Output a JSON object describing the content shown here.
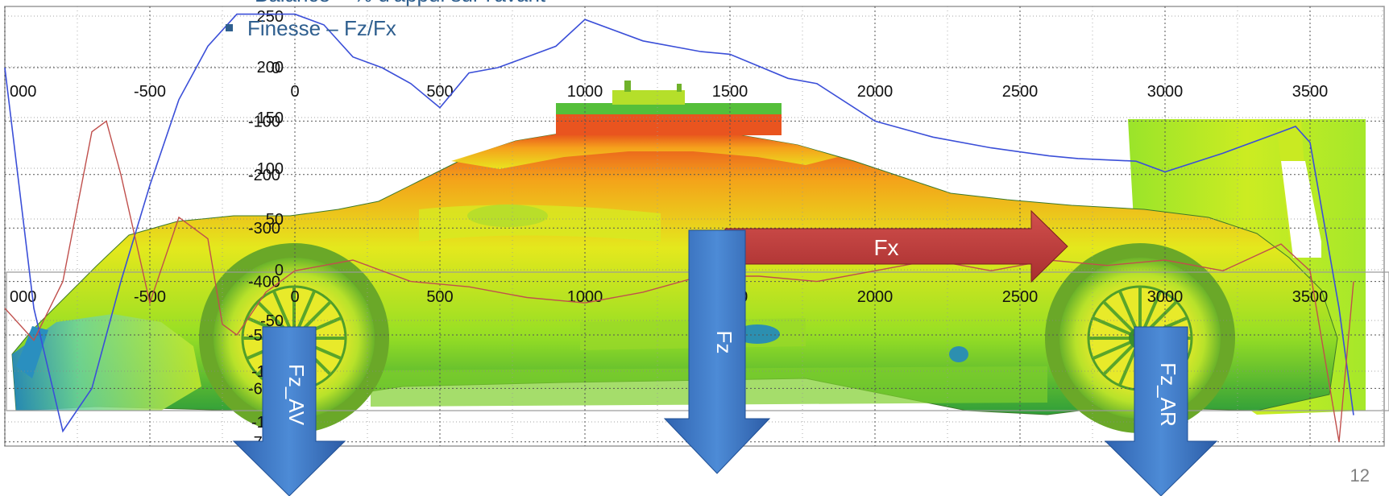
{
  "bullets": {
    "top_clipped": "Balance – % d'appui sur l'avant",
    "finesse": "Finesse – Fz/Fx"
  },
  "forces": {
    "fx": "Fx",
    "fz": "Fz",
    "fz_front": "Fz_AV",
    "fz_rear": "Fz_AR"
  },
  "page_number": "12",
  "colors": {
    "arrow_blue": "#3d75c0",
    "arrow_red": "#c0393b",
    "curve_blue": "#3b4fd8",
    "curve_red": "#c0504d",
    "text_blue": "#2f5f8f"
  },
  "chart_data": {
    "type": "line",
    "x_axis": {
      "ticks_upper": [
        "000",
        "-500",
        "0",
        "500",
        "1000",
        "1500",
        "2000",
        "2500",
        "3000",
        "3500"
      ],
      "ticks_lower": [
        "000",
        "-500",
        "0",
        "500",
        "1000",
        "1500",
        "2000",
        "2500",
        "3000",
        "3500"
      ]
    },
    "y_axis_left": {
      "ticks": [
        "0",
        "-100",
        "-200",
        "-300",
        "-400",
        "-500",
        "-600",
        "-700"
      ]
    },
    "y_axis_overlay": {
      "ticks": [
        "250",
        "200",
        "150",
        "100",
        "50",
        "0",
        "-50",
        "-100",
        "-150"
      ]
    },
    "grid": true,
    "series": [
      {
        "color": "blue",
        "points": [
          [
            -1000,
            0
          ],
          [
            -900,
            -450
          ],
          [
            -800,
            -680
          ],
          [
            -700,
            -600
          ],
          [
            -600,
            -400
          ],
          [
            -500,
            -220
          ],
          [
            -400,
            -60
          ],
          [
            -300,
            40
          ],
          [
            -200,
            100
          ],
          [
            0,
            100
          ],
          [
            100,
            80
          ],
          [
            200,
            20
          ],
          [
            300,
            0
          ],
          [
            400,
            -30
          ],
          [
            500,
            -75
          ],
          [
            600,
            -10
          ],
          [
            700,
            0
          ],
          [
            800,
            20
          ],
          [
            900,
            40
          ],
          [
            1000,
            90
          ],
          [
            1200,
            50
          ],
          [
            1400,
            30
          ],
          [
            1500,
            25
          ],
          [
            1700,
            -20
          ],
          [
            1800,
            -30
          ],
          [
            2000,
            -100
          ],
          [
            2200,
            -130
          ],
          [
            2400,
            -150
          ],
          [
            2600,
            -165
          ],
          [
            2700,
            -170
          ],
          [
            2900,
            -175
          ],
          [
            3000,
            -195
          ],
          [
            3200,
            -160
          ],
          [
            3400,
            -120
          ],
          [
            3450,
            -110
          ],
          [
            3500,
            -140
          ],
          [
            3600,
            -450
          ],
          [
            3650,
            -650
          ]
        ]
      },
      {
        "color": "red",
        "points": [
          [
            -1000,
            -450
          ],
          [
            -900,
            -510
          ],
          [
            -800,
            -400
          ],
          [
            -700,
            -120
          ],
          [
            -650,
            -100
          ],
          [
            -600,
            -200
          ],
          [
            -500,
            -440
          ],
          [
            -400,
            -280
          ],
          [
            -300,
            -320
          ],
          [
            -250,
            -480
          ],
          [
            -200,
            -500
          ],
          [
            -100,
            -420
          ],
          [
            0,
            -380
          ],
          [
            100,
            -370
          ],
          [
            200,
            -360
          ],
          [
            400,
            -400
          ],
          [
            600,
            -410
          ],
          [
            800,
            -430
          ],
          [
            1000,
            -440
          ],
          [
            1200,
            -420
          ],
          [
            1400,
            -390
          ],
          [
            1600,
            -390
          ],
          [
            1800,
            -400
          ],
          [
            2000,
            -380
          ],
          [
            2200,
            -360
          ],
          [
            2400,
            -380
          ],
          [
            2600,
            -360
          ],
          [
            2800,
            -370
          ],
          [
            3000,
            -360
          ],
          [
            3200,
            -380
          ],
          [
            3400,
            -330
          ],
          [
            3500,
            -380
          ],
          [
            3600,
            -700
          ],
          [
            3650,
            -400
          ]
        ]
      }
    ]
  }
}
